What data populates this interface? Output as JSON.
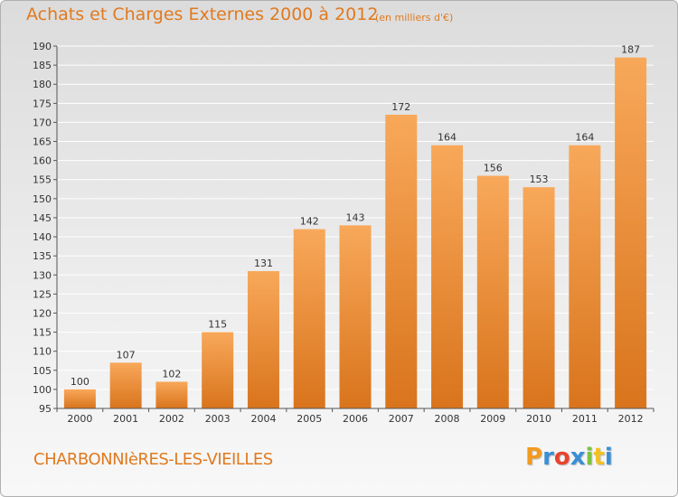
{
  "header": {
    "title": "Achats et Charges Externes 2000 à 2012",
    "subtitle": "(en milliers d'€)"
  },
  "footer": {
    "commune": "CHARBONNIèRES-LES-VIEILLES",
    "logo": "Proxiti",
    "logo_colors": [
      "#f39a1f",
      "#3a8fd6",
      "#e8432e",
      "#3a8fd6",
      "#7cc242",
      "#f3c21f",
      "#3a8fd6"
    ]
  },
  "colors": {
    "bar_top": "#f8a85a",
    "bar_bottom": "#d9741c",
    "accent": "#e07a1f",
    "grid": "#ffffff",
    "axis": "#555555"
  },
  "chart_data": {
    "type": "bar",
    "title": "Achats et Charges Externes 2000 à 2012",
    "subtitle": "(en milliers d'€)",
    "categories": [
      "2000",
      "2001",
      "2002",
      "2003",
      "2004",
      "2005",
      "2006",
      "2007",
      "2008",
      "2009",
      "2010",
      "2011",
      "2012"
    ],
    "values": [
      100,
      107,
      102,
      115,
      131,
      142,
      143,
      172,
      164,
      156,
      153,
      164,
      187
    ],
    "ylim": [
      95,
      190
    ],
    "yticks": [
      95,
      100,
      105,
      110,
      115,
      120,
      125,
      130,
      135,
      140,
      145,
      150,
      155,
      160,
      165,
      170,
      175,
      180,
      185,
      190
    ],
    "grid": true,
    "xlabel": "",
    "ylabel": ""
  }
}
